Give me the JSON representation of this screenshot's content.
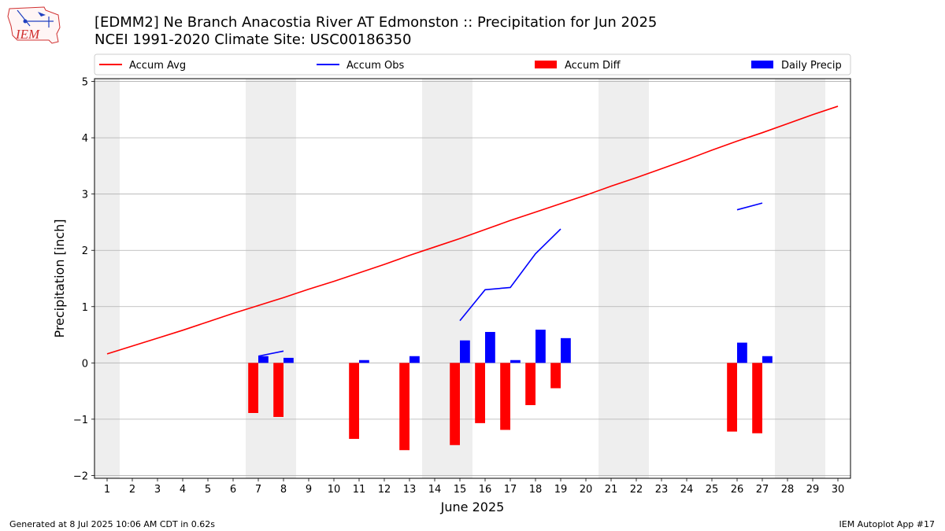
{
  "header": {
    "title_line1": "[EDMM2] Ne Branch Anacostia River  AT Edmonston :: Precipitation for Jun 2025",
    "title_line2": "NCEI 1991-2020 Climate Site: USC00186350",
    "logo_text": "IEM"
  },
  "footer": {
    "generated": "Generated at 8 Jul 2025 10:06 AM CDT in 0.62s",
    "app": "IEM Autoplot App #17"
  },
  "chart_data": {
    "type": "bar",
    "xlabel": "June 2025",
    "ylabel": "Precipitation [inch]",
    "ylim": [
      -2.05,
      5.05
    ],
    "xlim": [
      0.5,
      30.5
    ],
    "x_ticks": [
      "1",
      "2",
      "3",
      "4",
      "5",
      "6",
      "7",
      "8",
      "9",
      "10",
      "11",
      "12",
      "13",
      "14",
      "15",
      "16",
      "17",
      "18",
      "19",
      "20",
      "21",
      "22",
      "23",
      "24",
      "25",
      "26",
      "27",
      "28",
      "29",
      "30"
    ],
    "y_ticks": [
      -2,
      -1,
      0,
      1,
      2,
      3,
      4,
      5
    ],
    "grid": "horizontal",
    "legend_placement": "top",
    "weekend_shading": [
      [
        0.5,
        1.5
      ],
      [
        6.5,
        8.5
      ],
      [
        13.5,
        15.5
      ],
      [
        20.5,
        22.5
      ],
      [
        27.5,
        29.5
      ]
    ],
    "colors": {
      "accum_avg": "#ff0000",
      "accum_obs": "#0000ff",
      "accum_diff": "#ff0000",
      "daily_precip": "#0000ff",
      "weekend": "#eeeeee",
      "grid": "#b0b0b0"
    },
    "legend": [
      {
        "label": "Accum Avg",
        "kind": "line",
        "color": "#ff0000"
      },
      {
        "label": "Accum Obs",
        "kind": "line",
        "color": "#0000ff"
      },
      {
        "label": "Accum Diff",
        "kind": "bar",
        "color": "#ff0000"
      },
      {
        "label": "Daily Precip",
        "kind": "bar",
        "color": "#0000ff"
      }
    ],
    "series": [
      {
        "name": "Accum Avg",
        "type": "line",
        "x": [
          1,
          2,
          3,
          4,
          5,
          6,
          7,
          8,
          9,
          10,
          11,
          12,
          13,
          14,
          15,
          16,
          17,
          18,
          19,
          20,
          21,
          22,
          23,
          24,
          25,
          26,
          27,
          28,
          29,
          30
        ],
        "values": [
          0.16,
          0.3,
          0.44,
          0.58,
          0.73,
          0.88,
          1.02,
          1.16,
          1.31,
          1.45,
          1.6,
          1.75,
          1.91,
          2.06,
          2.21,
          2.37,
          2.53,
          2.68,
          2.83,
          2.98,
          3.14,
          3.29,
          3.45,
          3.61,
          3.78,
          3.94,
          4.09,
          4.25,
          4.41,
          4.56
        ]
      },
      {
        "name": "Accum Obs",
        "type": "line",
        "segments": [
          {
            "x": [
              7,
              8
            ],
            "values": [
              0.12,
              0.21
            ]
          },
          {
            "x": [
              15,
              16,
              17,
              18,
              19
            ],
            "values": [
              0.75,
              1.3,
              1.34,
              1.94,
              2.38
            ]
          },
          {
            "x": [
              26,
              27
            ],
            "values": [
              2.72,
              2.84
            ]
          }
        ]
      },
      {
        "name": "Accum Diff",
        "type": "bar",
        "x": [
          7,
          8,
          11,
          13,
          15,
          16,
          17,
          18,
          19,
          26,
          27
        ],
        "values": [
          -0.89,
          -0.96,
          -1.35,
          -1.55,
          -1.46,
          -1.07,
          -1.19,
          -0.75,
          -0.45,
          -1.22,
          -1.25
        ]
      },
      {
        "name": "Daily Precip",
        "type": "bar",
        "x": [
          7,
          8,
          11,
          13,
          15,
          16,
          17,
          18,
          19,
          26,
          27
        ],
        "values": [
          0.12,
          0.09,
          0.05,
          0.12,
          0.4,
          0.55,
          0.05,
          0.59,
          0.44,
          0.36,
          0.12
        ]
      }
    ]
  }
}
